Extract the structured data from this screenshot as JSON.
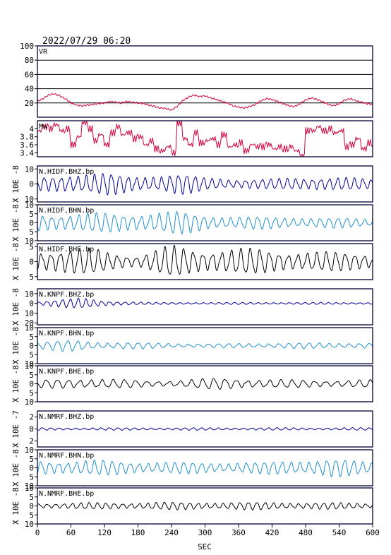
{
  "title": "2022/07/29 06:20",
  "xaxis": {
    "label": "SEC",
    "ticks": [
      0,
      60,
      120,
      180,
      240,
      300,
      360,
      420,
      480,
      540,
      600
    ],
    "range": [
      0,
      600
    ]
  },
  "colors": {
    "vr": "#d6003a",
    "mw": "#d6003a",
    "bhz": "#000099",
    "bhn": "#1e90d0",
    "bhe": "#000000",
    "frame": "#000033",
    "grid": "#000000"
  },
  "chart_data": [
    {
      "type": "line",
      "name": "VR",
      "label": "VR",
      "ylim": [
        0,
        100
      ],
      "yticks": [
        20,
        40,
        60,
        80,
        100
      ],
      "grid": true,
      "color": "#d6003a",
      "x": [
        0,
        10,
        20,
        30,
        40,
        50,
        60,
        70,
        80,
        90,
        100,
        110,
        120,
        130,
        140,
        150,
        160,
        170,
        180,
        190,
        200,
        210,
        220,
        230,
        240,
        250,
        260,
        270,
        280,
        290,
        300,
        310,
        320,
        330,
        340,
        350,
        360,
        370,
        380,
        390,
        400,
        410,
        420,
        430,
        440,
        450,
        460,
        470,
        480,
        490,
        500,
        510,
        520,
        530,
        540,
        550,
        560,
        570,
        580,
        590,
        600
      ],
      "values": [
        22,
        26,
        31,
        33,
        30,
        26,
        20,
        17,
        16,
        17,
        18,
        19,
        20,
        22,
        21,
        20,
        22,
        21,
        20,
        19,
        17,
        15,
        13,
        12,
        10,
        15,
        23,
        28,
        31,
        29,
        30,
        27,
        25,
        22,
        20,
        16,
        14,
        13,
        15,
        18,
        23,
        26,
        25,
        22,
        19,
        16,
        15,
        19,
        24,
        27,
        25,
        22,
        18,
        16,
        19,
        24,
        26,
        23,
        21,
        19,
        18
      ]
    },
    {
      "type": "line",
      "name": "Mw",
      "label": "Mw",
      "ylim": [
        3.3,
        4.2
      ],
      "yticks": [
        3.4,
        3.6,
        3.8,
        4.0
      ],
      "grid": false,
      "color": "#d6003a",
      "x": [
        0,
        10,
        20,
        30,
        40,
        50,
        60,
        70,
        80,
        90,
        100,
        110,
        120,
        130,
        140,
        150,
        160,
        170,
        180,
        190,
        200,
        210,
        220,
        230,
        240,
        250,
        260,
        270,
        280,
        290,
        300,
        310,
        320,
        330,
        340,
        350,
        360,
        370,
        380,
        390,
        400,
        410,
        420,
        430,
        440,
        450,
        460,
        470,
        480,
        490,
        500,
        510,
        520,
        530,
        540,
        550,
        560,
        570,
        580,
        590,
        600
      ],
      "values": [
        3.95,
        4.05,
        4.0,
        4.1,
        3.95,
        4.0,
        3.6,
        3.8,
        4.15,
        4.0,
        3.7,
        3.85,
        3.6,
        3.9,
        4.05,
        3.85,
        3.9,
        3.75,
        3.8,
        3.6,
        3.7,
        3.5,
        3.45,
        3.55,
        3.4,
        4.15,
        3.75,
        3.6,
        3.9,
        3.65,
        3.7,
        3.75,
        3.6,
        3.85,
        3.55,
        3.6,
        3.65,
        3.45,
        3.6,
        3.55,
        3.55,
        3.6,
        3.5,
        3.55,
        3.5,
        3.55,
        3.45,
        3.3,
        3.95,
        3.95,
        4.05,
        3.95,
        4.0,
        3.9,
        3.95,
        3.55,
        3.6,
        3.75,
        3.5,
        3.65,
        3.55
      ]
    },
    {
      "type": "line",
      "name": "N.HIDF.BHZ.bp",
      "label": "N.HIDF.BHZ.bp",
      "unit": "X 10E -8",
      "ylim": [
        -12,
        12
      ],
      "yticks": [
        -10,
        0,
        10
      ],
      "ytick_labels": [
        "10",
        "0",
        "10"
      ],
      "grid": false,
      "color": "#000099",
      "amplitude_envelope": [
        [
          0,
          4
        ],
        [
          60,
          7
        ],
        [
          120,
          7
        ],
        [
          170,
          5
        ],
        [
          250,
          7
        ],
        [
          300,
          4
        ],
        [
          420,
          3
        ],
        [
          500,
          5
        ],
        [
          600,
          3
        ]
      ],
      "period": 15
    },
    {
      "type": "line",
      "name": "N.HIDF.BHN.bp",
      "label": "N.HIDF.BHN.bp",
      "unit": "X 10E -8",
      "ylim": [
        -10,
        10
      ],
      "yticks": [
        -10,
        -5,
        0,
        5,
        10
      ],
      "ytick_labels": [
        "10",
        "5",
        "0",
        "5",
        "10"
      ],
      "grid": false,
      "color": "#1e90d0",
      "amplitude_envelope": [
        [
          0,
          5
        ],
        [
          60,
          5
        ],
        [
          150,
          5
        ],
        [
          250,
          6
        ],
        [
          310,
          4
        ],
        [
          420,
          3
        ],
        [
          500,
          3
        ],
        [
          600,
          2
        ]
      ],
      "period": 16
    },
    {
      "type": "line",
      "name": "N.HIDF.BHE.bp",
      "label": "N.HIDF.BHE.bp",
      "unit": "X 10E -8",
      "ylim": [
        -6,
        6
      ],
      "yticks": [
        -5,
        0,
        5
      ],
      "ytick_labels": [
        "5",
        "0",
        "5"
      ],
      "grid": false,
      "color": "#000000",
      "amplitude_envelope": [
        [
          0,
          4
        ],
        [
          100,
          4
        ],
        [
          180,
          2
        ],
        [
          240,
          5
        ],
        [
          300,
          4
        ],
        [
          400,
          4
        ],
        [
          500,
          3
        ],
        [
          600,
          3
        ]
      ],
      "period": 17
    },
    {
      "type": "line",
      "name": "N.KNPF.BHZ.bp",
      "label": "N.KNPF.BHZ.bp",
      "unit": "X 10E -8",
      "ylim": [
        -22,
        15
      ],
      "yticks": [
        -20,
        -10,
        0,
        10
      ],
      "ytick_labels": [
        "20",
        "10",
        "0",
        "10"
      ],
      "grid": false,
      "color": "#000099",
      "amplitude_envelope": [
        [
          0,
          2
        ],
        [
          40,
          4
        ],
        [
          80,
          5
        ],
        [
          120,
          3
        ],
        [
          200,
          1
        ],
        [
          600,
          1
        ]
      ],
      "period": 14
    },
    {
      "type": "line",
      "name": "N.KNPF.BHN.bp",
      "label": "N.KNPF.BHN.bp",
      "unit": "X 10E -8",
      "ylim": [
        -10,
        10
      ],
      "yticks": [
        -10,
        -5,
        0,
        5,
        10
      ],
      "ytick_labels": [
        "10",
        "5",
        "0",
        "5",
        "10"
      ],
      "grid": false,
      "color": "#1e90d0",
      "amplitude_envelope": [
        [
          0,
          2
        ],
        [
          60,
          3
        ],
        [
          120,
          2
        ],
        [
          300,
          1
        ],
        [
          450,
          1.5
        ],
        [
          600,
          1.5
        ]
      ],
      "period": 18
    },
    {
      "type": "line",
      "name": "N.KNPF.BHE.bp",
      "label": "N.KNPF.BHE.bp",
      "unit": "X 10E -8",
      "ylim": [
        -10,
        10
      ],
      "yticks": [
        -10,
        -5,
        0,
        5,
        10
      ],
      "ytick_labels": [
        "10",
        "5",
        "0",
        "5",
        "10"
      ],
      "grid": false,
      "color": "#000000",
      "amplitude_envelope": [
        [
          0,
          2
        ],
        [
          100,
          3
        ],
        [
          200,
          1.5
        ],
        [
          330,
          3
        ],
        [
          460,
          2
        ],
        [
          600,
          2
        ]
      ],
      "period": 20
    },
    {
      "type": "line",
      "name": "N.NMRF.BHZ.bp",
      "label": "N.NMRF.BHZ.bp",
      "unit": "X 10E -7",
      "ylim": [
        -3,
        3
      ],
      "yticks": [
        -2,
        0,
        2
      ],
      "ytick_labels": [
        "2",
        "0",
        "2"
      ],
      "grid": false,
      "color": "#000099",
      "amplitude_envelope": [
        [
          0,
          0.2
        ],
        [
          600,
          0.2
        ]
      ],
      "period": 15
    },
    {
      "type": "line",
      "name": "N.NMRF.BHN.bp",
      "label": "N.NMRF.BHN.bp",
      "unit": "X 10E -8",
      "ylim": [
        -10,
        10
      ],
      "yticks": [
        -10,
        -5,
        0,
        5,
        10
      ],
      "ytick_labels": [
        "10",
        "5",
        "0",
        "5",
        "10"
      ],
      "grid": false,
      "color": "#1e90d0",
      "amplitude_envelope": [
        [
          0,
          4
        ],
        [
          100,
          4
        ],
        [
          250,
          3
        ],
        [
          400,
          3
        ],
        [
          520,
          5
        ],
        [
          600,
          3
        ]
      ],
      "period": 16
    },
    {
      "type": "line",
      "name": "N.NMRF.BHE.bp",
      "label": "N.NMRF.BHE.bp",
      "unit": "X 10E -8",
      "ylim": [
        -10,
        10
      ],
      "yticks": [
        -10,
        -5,
        0,
        5,
        10
      ],
      "ytick_labels": [
        "10",
        "5",
        "0",
        "5",
        "10"
      ],
      "grid": false,
      "color": "#000000",
      "amplitude_envelope": [
        [
          0,
          1.5
        ],
        [
          250,
          2
        ],
        [
          420,
          2
        ],
        [
          600,
          1.5
        ]
      ],
      "period": 15
    }
  ]
}
